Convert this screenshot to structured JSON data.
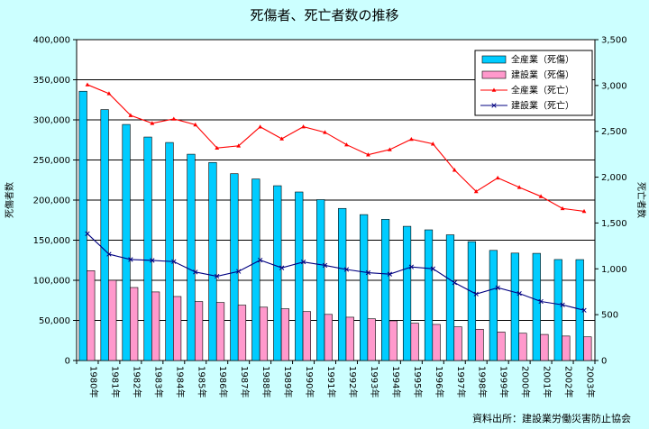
{
  "chart_data": {
    "type": "bar",
    "title": "死傷者、死亡者数の推移",
    "ylabel_left": "死傷者数",
    "ylabel_right": "死亡者数",
    "source": "資料出所：建設業労働災害防止協会",
    "categories": [
      "1980年",
      "1981年",
      "1982年",
      "1983年",
      "1984年",
      "1985年",
      "1986年",
      "1987年",
      "1988年",
      "1989年",
      "1990年",
      "1991年",
      "1992年",
      "1993年",
      "1994年",
      "1995年",
      "1996年",
      "1997年",
      "1998年",
      "1999年",
      "2000年",
      "2001年",
      "2002年",
      "2003年"
    ],
    "ylim_left": [
      0,
      400000
    ],
    "ylim_right": [
      0,
      3500
    ],
    "left_ticks": [
      "0",
      "50,000",
      "100,000",
      "150,000",
      "200,000",
      "250,000",
      "300,000",
      "350,000",
      "400,000"
    ],
    "right_ticks": [
      "0",
      "500",
      "1,000",
      "1,500",
      "2,000",
      "2,500",
      "3,000",
      "3,500"
    ],
    "grid": true,
    "legend_position": "top-right",
    "series": [
      {
        "name": "全産業（死傷）",
        "kind": "bar",
        "axis": "left",
        "color": "#00ccff",
        "values": [
          335700,
          312800,
          294300,
          278600,
          271800,
          257200,
          246900,
          232900,
          226300,
          217900,
          210100,
          200600,
          189600,
          181900,
          176000,
          167300,
          162900,
          156700,
          148200,
          137300,
          133900,
          133600,
          125900,
          125800
        ]
      },
      {
        "name": "建設業（死傷）",
        "kind": "bar",
        "axis": "left",
        "color": "#ff99cc",
        "values": [
          112000,
          100000,
          91000,
          85500,
          79800,
          73500,
          72300,
          69000,
          66500,
          64500,
          61000,
          57500,
          54000,
          52000,
          49500,
          46500,
          45000,
          42000,
          39000,
          35500,
          34000,
          32500,
          30500,
          29500
        ]
      },
      {
        "name": "全産業（死亡）",
        "kind": "line",
        "axis": "right",
        "color": "#ff0000",
        "marker": "triangle",
        "values": [
          3009,
          2912,
          2674,
          2588,
          2635,
          2572,
          2318,
          2342,
          2549,
          2419,
          2550,
          2489,
          2354,
          2245,
          2301,
          2414,
          2363,
          2078,
          1844,
          1992,
          1889,
          1790,
          1658,
          1628
        ]
      },
      {
        "name": "建設業（死亡）",
        "kind": "line",
        "axis": "right",
        "color": "#000080",
        "marker": "x",
        "values": [
          1383,
          1160,
          1102,
          1092,
          1079,
          965,
          919,
          972,
          1095,
          1011,
          1075,
          1038,
          993,
          958,
          942,
          1021,
          1001,
          849,
          725,
          794,
          731,
          644,
          607,
          548
        ]
      }
    ]
  }
}
